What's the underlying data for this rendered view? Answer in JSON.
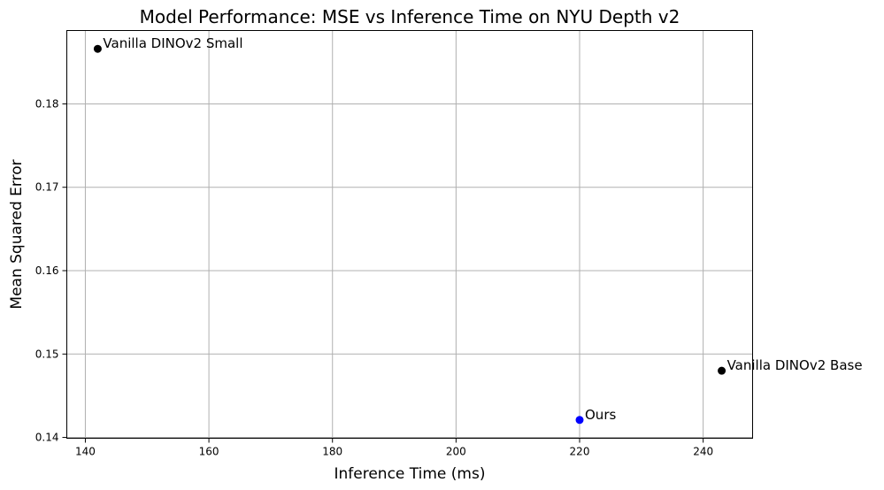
{
  "chart_data": {
    "type": "scatter",
    "title": "Model Performance: MSE vs Inference Time on NYU Depth v2",
    "xlabel": "Inference Time (ms)",
    "ylabel": "Mean Squared Error",
    "xlim": [
      137,
      248
    ],
    "ylim": [
      0.1399,
      0.1888
    ],
    "xticks": [
      140,
      160,
      180,
      200,
      220,
      240
    ],
    "yticks": [
      0.14,
      0.15,
      0.16,
      0.17,
      0.18
    ],
    "xtick_labels": [
      "140",
      "160",
      "180",
      "200",
      "220",
      "240"
    ],
    "ytick_labels": [
      "0.14",
      "0.15",
      "0.16",
      "0.17",
      "0.18"
    ],
    "grid": true,
    "points": [
      {
        "label": "Vanilla DINOv2 Small",
        "x": 142,
        "y": 0.1866,
        "color": "#000000"
      },
      {
        "label": "Vanilla DINOv2 Base",
        "x": 243,
        "y": 0.148,
        "color": "#000000"
      },
      {
        "label": "Ours",
        "x": 220,
        "y": 0.1421,
        "color": "#0000ff"
      }
    ]
  }
}
